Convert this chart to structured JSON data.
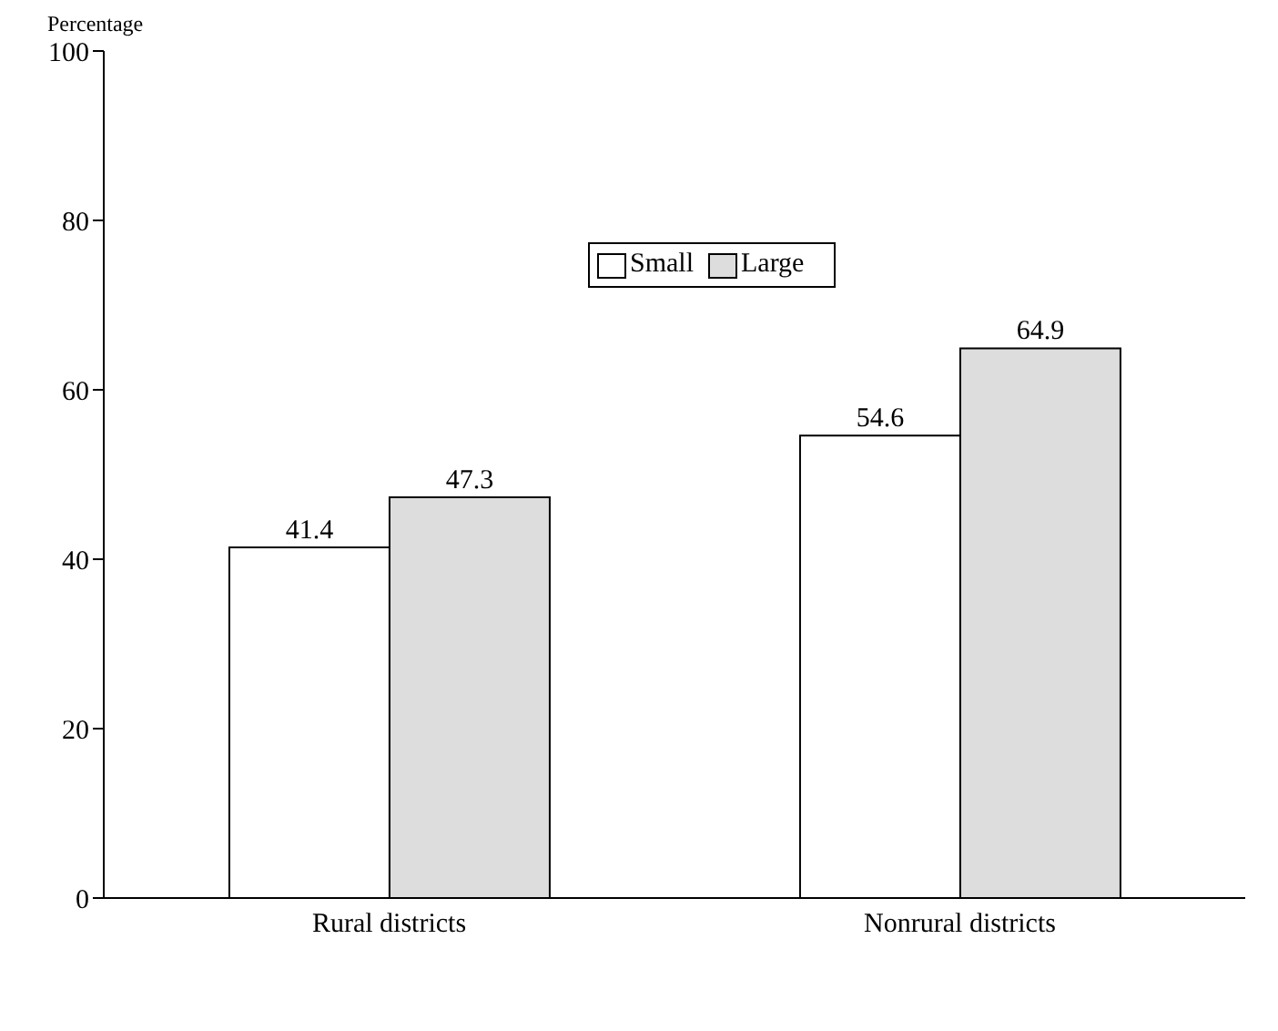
{
  "chart_data": {
    "type": "bar",
    "ylabel": "Percentage",
    "categories": [
      "Rural districts",
      "Nonrural districts"
    ],
    "series": [
      {
        "name": "Small",
        "color": "#ffffff",
        "values": [
          41.4,
          54.6
        ]
      },
      {
        "name": "Large",
        "color": "#dddddd",
        "values": [
          47.3,
          64.9
        ]
      }
    ],
    "ylim": [
      0,
      100
    ],
    "yticks": [
      0,
      20,
      40,
      60,
      80,
      100
    ],
    "data_labels": true,
    "legend": "top"
  }
}
